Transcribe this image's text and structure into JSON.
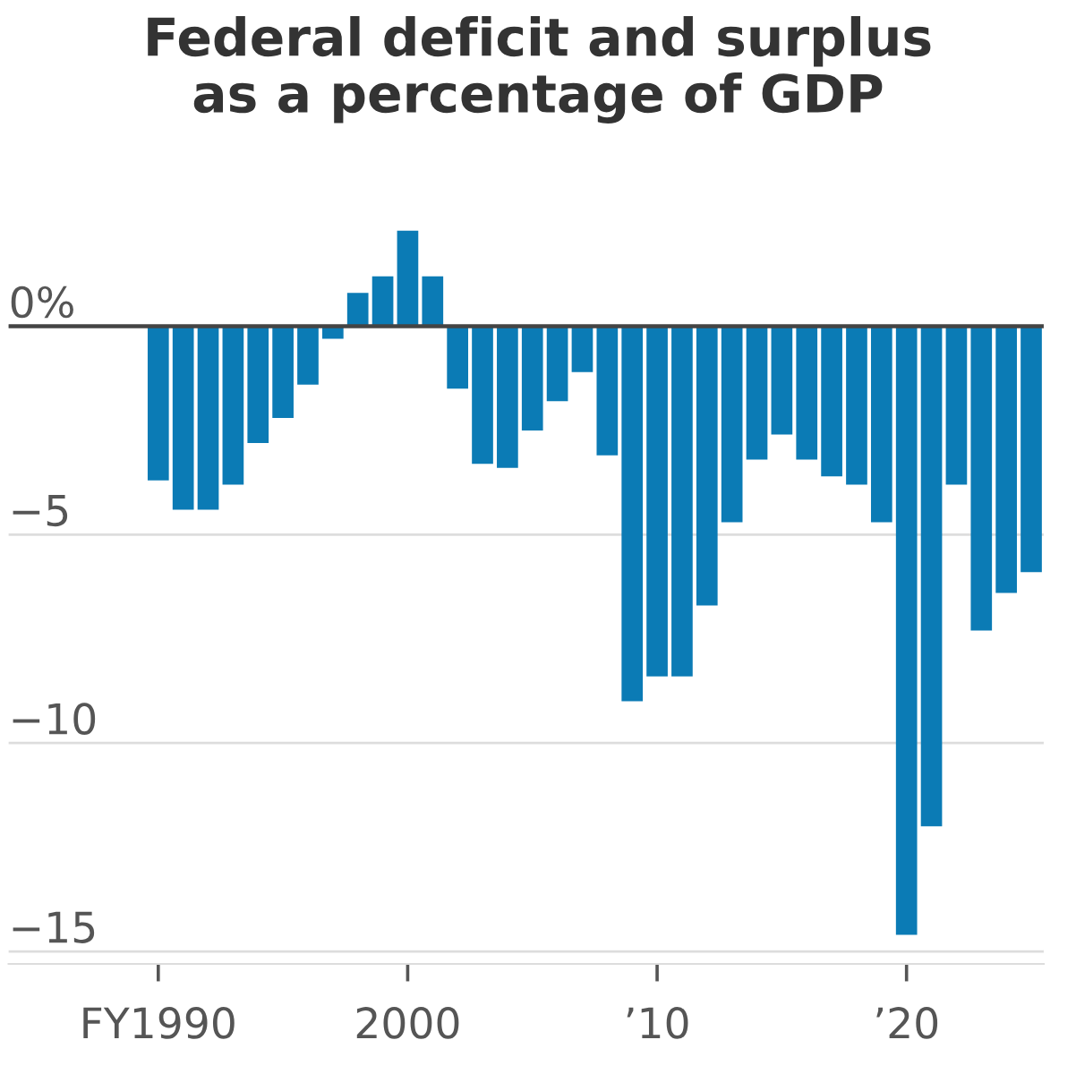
{
  "chart_data": {
    "type": "bar",
    "title": "Federal deficit and surplus\nas a percentage of GDP",
    "x": [
      1990,
      1991,
      1992,
      1993,
      1994,
      1995,
      1996,
      1997,
      1998,
      1999,
      2000,
      2001,
      2002,
      2003,
      2004,
      2005,
      2006,
      2007,
      2008,
      2009,
      2010,
      2011,
      2012,
      2013,
      2014,
      2015,
      2016,
      2017,
      2018,
      2019,
      2020,
      2021,
      2022,
      2023,
      2024,
      2025
    ],
    "values": [
      -3.7,
      -4.4,
      -4.4,
      -3.8,
      -2.8,
      -2.2,
      -1.4,
      -0.3,
      0.8,
      1.2,
      2.3,
      1.2,
      -1.5,
      -3.3,
      -3.4,
      -2.5,
      -1.8,
      -1.1,
      -3.1,
      -9.0,
      -8.4,
      -8.4,
      -6.7,
      -4.7,
      -3.2,
      -2.6,
      -3.2,
      -3.6,
      -3.8,
      -4.7,
      -14.6,
      -12.0,
      -3.8,
      -7.3,
      -6.4,
      -5.9
    ],
    "color": "#0b7bb5",
    "xlim": [
      1984,
      2025.5
    ],
    "xticks": [
      {
        "value": 1990,
        "label": "FY1990"
      },
      2000,
      {
        "value": 2010,
        "label": "’10"
      },
      {
        "value": 2020,
        "label": "’20"
      }
    ],
    "ylim": [
      -15.3,
      2.3
    ],
    "yticks": [
      {
        "value": 0,
        "label": "0%"
      },
      {
        "value": -5,
        "label": "−5"
      },
      {
        "value": -10,
        "label": "−10"
      },
      {
        "value": -15,
        "label": "−15"
      }
    ],
    "grid": "y",
    "ref_lines": [
      {
        "axis": "y",
        "value": 0,
        "color": "#444444"
      }
    ]
  }
}
